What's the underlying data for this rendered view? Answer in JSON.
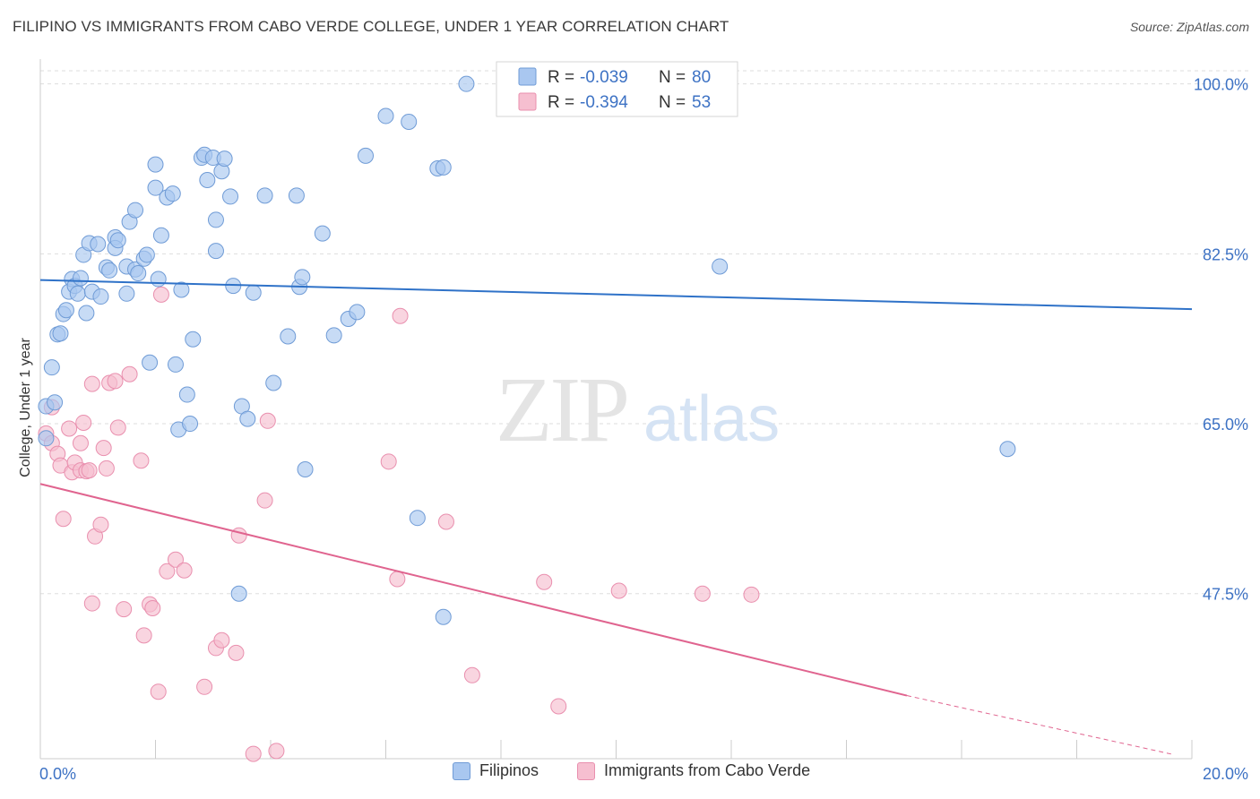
{
  "title": "FILIPINO VS IMMIGRANTS FROM CABO VERDE COLLEGE, UNDER 1 YEAR CORRELATION CHART",
  "source": "Source: ZipAtlas.com",
  "watermark": {
    "zip": "ZIP",
    "atlas": "atlas"
  },
  "colors": {
    "blue_fill": "#a9c7f0",
    "blue_stroke": "#6f9bd6",
    "blue_line": "#2f72c8",
    "pink_fill": "#f6bfd0",
    "pink_stroke": "#e98fae",
    "pink_line": "#e0648f",
    "axis_label": "#3d72c4",
    "grid": "#dddddd"
  },
  "legend_stats": [
    {
      "r_label": "R = ",
      "r_value": "-0.039",
      "n_label": "N = ",
      "n_value": "80"
    },
    {
      "r_label": "R = ",
      "r_value": "-0.394",
      "n_label": "N = ",
      "n_value": "53"
    }
  ],
  "legend_bottom": [
    "Filipinos",
    "Immigrants from Cabo Verde"
  ],
  "chart_data": {
    "type": "scatter",
    "title": "FILIPINO VS IMMIGRANTS FROM CABO VERDE COLLEGE, UNDER 1 YEAR CORRELATION CHART",
    "xlabel": "",
    "ylabel": "College, Under 1 year",
    "xlim": [
      0,
      20
    ],
    "ylim": [
      30.5,
      102
    ],
    "x_tick_labels": [
      "0.0%",
      "20.0%"
    ],
    "y_ticks": [
      47.5,
      65.0,
      82.5,
      100.0
    ],
    "y_tick_labels": [
      "47.5%",
      "65.0%",
      "82.5%",
      "100.0%"
    ],
    "grid": true,
    "series": [
      {
        "name": "Filipinos",
        "r": -0.039,
        "n": 80,
        "trend": {
          "x": [
            0,
            20
          ],
          "y": [
            79.8,
            76.8
          ]
        },
        "points": [
          [
            0.1,
            66.8
          ],
          [
            0.1,
            63.5
          ],
          [
            0.2,
            70.8
          ],
          [
            0.25,
            67.2
          ],
          [
            0.3,
            74.2
          ],
          [
            0.35,
            74.3
          ],
          [
            0.4,
            76.3
          ],
          [
            0.45,
            76.7
          ],
          [
            0.5,
            78.6
          ],
          [
            0.55,
            79.9
          ],
          [
            0.6,
            79.2
          ],
          [
            0.65,
            78.4
          ],
          [
            0.7,
            80.0
          ],
          [
            0.75,
            82.4
          ],
          [
            0.8,
            76.4
          ],
          [
            0.85,
            83.6
          ],
          [
            0.9,
            78.6
          ],
          [
            1.0,
            83.5
          ],
          [
            1.05,
            78.1
          ],
          [
            1.15,
            81.1
          ],
          [
            1.2,
            80.8
          ],
          [
            1.3,
            84.2
          ],
          [
            1.3,
            83.1
          ],
          [
            1.35,
            83.9
          ],
          [
            1.5,
            81.2
          ],
          [
            1.5,
            78.4
          ],
          [
            1.55,
            85.8
          ],
          [
            1.65,
            80.9
          ],
          [
            1.65,
            87.0
          ],
          [
            1.7,
            80.5
          ],
          [
            1.8,
            82.0
          ],
          [
            1.85,
            82.4
          ],
          [
            1.9,
            71.3
          ],
          [
            2.0,
            89.3
          ],
          [
            2.0,
            91.7
          ],
          [
            2.05,
            79.9
          ],
          [
            2.1,
            84.4
          ],
          [
            2.2,
            88.3
          ],
          [
            2.3,
            88.7
          ],
          [
            2.35,
            71.1
          ],
          [
            2.4,
            64.4
          ],
          [
            2.45,
            78.8
          ],
          [
            2.55,
            68.0
          ],
          [
            2.6,
            65.0
          ],
          [
            2.65,
            73.7
          ],
          [
            2.8,
            92.4
          ],
          [
            2.85,
            92.7
          ],
          [
            2.9,
            90.1
          ],
          [
            3.0,
            92.4
          ],
          [
            3.05,
            82.8
          ],
          [
            3.05,
            86.0
          ],
          [
            3.15,
            91.0
          ],
          [
            3.2,
            92.3
          ],
          [
            3.3,
            88.4
          ],
          [
            3.35,
            79.2
          ],
          [
            3.45,
            47.5
          ],
          [
            3.5,
            66.8
          ],
          [
            3.6,
            65.5
          ],
          [
            3.7,
            78.5
          ],
          [
            3.9,
            88.5
          ],
          [
            4.05,
            69.2
          ],
          [
            4.3,
            74.0
          ],
          [
            4.45,
            88.5
          ],
          [
            4.5,
            79.1
          ],
          [
            4.55,
            80.1
          ],
          [
            4.6,
            60.3
          ],
          [
            4.9,
            84.6
          ],
          [
            5.1,
            74.1
          ],
          [
            5.35,
            75.8
          ],
          [
            5.5,
            76.5
          ],
          [
            5.65,
            92.6
          ],
          [
            6.0,
            96.7
          ],
          [
            6.4,
            96.1
          ],
          [
            6.55,
            55.3
          ],
          [
            6.9,
            91.3
          ],
          [
            7.0,
            91.4
          ],
          [
            7.0,
            45.1
          ],
          [
            7.4,
            100.0
          ],
          [
            11.8,
            81.2
          ],
          [
            16.8,
            62.4
          ]
        ]
      },
      {
        "name": "Immigrants from Cabo Verde",
        "r": -0.394,
        "n": 53,
        "trend": {
          "x": [
            0,
            15.05
          ],
          "y": [
            58.8,
            37.0
          ]
        },
        "trend_dashed": {
          "x": [
            15.05,
            19.7
          ],
          "y": [
            37.0,
            30.9
          ]
        },
        "points": [
          [
            0.1,
            64.0
          ],
          [
            0.2,
            66.7
          ],
          [
            0.2,
            63.0
          ],
          [
            0.3,
            61.9
          ],
          [
            0.35,
            60.7
          ],
          [
            0.4,
            55.2
          ],
          [
            0.5,
            64.5
          ],
          [
            0.55,
            60.0
          ],
          [
            0.6,
            61.0
          ],
          [
            0.7,
            63.0
          ],
          [
            0.7,
            60.2
          ],
          [
            0.75,
            65.1
          ],
          [
            0.8,
            60.1
          ],
          [
            0.85,
            60.2
          ],
          [
            0.9,
            69.1
          ],
          [
            0.9,
            46.5
          ],
          [
            0.95,
            53.4
          ],
          [
            1.05,
            54.6
          ],
          [
            1.1,
            62.5
          ],
          [
            1.15,
            60.4
          ],
          [
            1.2,
            69.2
          ],
          [
            1.3,
            69.4
          ],
          [
            1.35,
            64.6
          ],
          [
            1.45,
            45.9
          ],
          [
            1.55,
            70.1
          ],
          [
            1.75,
            61.2
          ],
          [
            1.8,
            43.2
          ],
          [
            1.9,
            46.4
          ],
          [
            1.95,
            46.0
          ],
          [
            2.05,
            37.4
          ],
          [
            2.1,
            78.3
          ],
          [
            2.2,
            49.8
          ],
          [
            2.35,
            51.0
          ],
          [
            2.5,
            49.9
          ],
          [
            2.85,
            37.9
          ],
          [
            3.05,
            41.9
          ],
          [
            3.15,
            42.7
          ],
          [
            3.4,
            41.4
          ],
          [
            3.45,
            53.5
          ],
          [
            3.7,
            31.0
          ],
          [
            3.9,
            57.1
          ],
          [
            3.95,
            65.3
          ],
          [
            4.1,
            31.3
          ],
          [
            6.05,
            61.1
          ],
          [
            6.2,
            49.0
          ],
          [
            6.25,
            76.1
          ],
          [
            7.05,
            54.9
          ],
          [
            7.5,
            39.1
          ],
          [
            8.75,
            48.7
          ],
          [
            9.0,
            35.9
          ],
          [
            10.05,
            47.8
          ],
          [
            11.5,
            47.5
          ],
          [
            12.35,
            47.4
          ]
        ]
      }
    ]
  }
}
